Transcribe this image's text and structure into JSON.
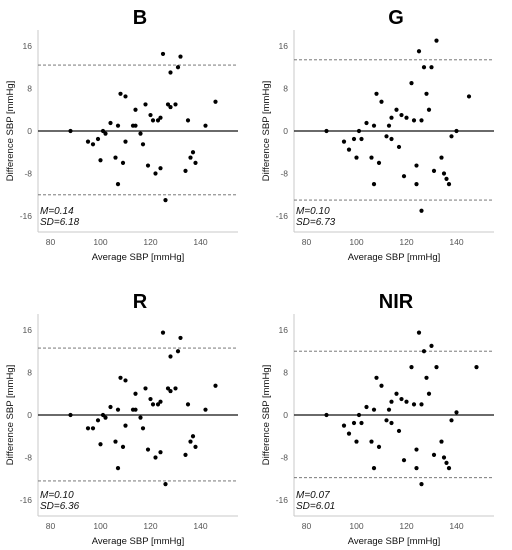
{
  "chart_data": [
    {
      "type": "scatter",
      "title": "B",
      "xlabel": "Average SBP [mmHg]",
      "ylabel": "Difference SBP [mmHg]",
      "xlim": [
        75,
        155
      ],
      "ylim": [
        -19,
        19
      ],
      "xticks": [
        "80",
        "100",
        "120",
        "140"
      ],
      "yticks": [
        "16",
        "8",
        "0",
        "-8",
        "-16"
      ],
      "mean_line": 0,
      "limits_of_agreement": [
        12.4,
        -12.0
      ],
      "stats": [
        "M=0.14",
        "SD=6.18"
      ],
      "x": [
        88,
        95,
        97,
        99,
        100,
        101,
        102,
        104,
        106,
        107,
        107,
        108,
        109,
        110,
        110,
        113,
        114,
        114,
        116,
        117,
        118,
        119,
        120,
        121,
        122,
        123,
        124,
        124,
        125,
        126,
        127,
        128,
        128,
        130,
        131,
        132,
        134,
        135,
        136,
        137,
        138,
        142,
        146
      ],
      "y": [
        0,
        -2,
        -2.5,
        -1.5,
        -5.5,
        0,
        -0.5,
        1.5,
        -5,
        -10,
        1,
        7,
        -6,
        -2,
        6.5,
        1,
        1,
        4,
        -0.5,
        -2.5,
        5,
        -6.5,
        3,
        2,
        -8,
        2,
        -7,
        2.5,
        14.5,
        -13,
        5,
        4.5,
        11,
        5,
        12,
        14,
        -7.5,
        2,
        -5,
        -4,
        -6,
        1,
        5.5
      ]
    },
    {
      "type": "scatter",
      "title": "G",
      "xlabel": "Average SBP [mmHg]",
      "ylabel": "Difference SBP [mmHg]",
      "xlim": [
        75,
        155
      ],
      "ylim": [
        -19,
        19
      ],
      "xticks": [
        "80",
        "100",
        "120",
        "140"
      ],
      "yticks": [
        "16",
        "8",
        "0",
        "-8",
        "-16"
      ],
      "mean_line": 0,
      "limits_of_agreement": [
        13.4,
        -13.0
      ],
      "stats": [
        "M=0.10",
        "SD=6.73"
      ],
      "x": [
        88,
        95,
        97,
        99,
        100,
        101,
        102,
        104,
        106,
        107,
        107,
        108,
        109,
        110,
        112,
        113,
        114,
        114,
        116,
        117,
        118,
        119,
        120,
        122,
        123,
        124,
        124,
        125,
        126,
        126,
        127,
        128,
        129,
        130,
        131,
        132,
        134,
        135,
        136,
        137,
        138,
        140,
        145
      ],
      "y": [
        0,
        -2,
        -3.5,
        -1.5,
        -5,
        0,
        -1.5,
        1.5,
        -5,
        -10,
        1,
        7,
        -6,
        5.5,
        -1,
        1,
        2.5,
        -1.5,
        4,
        -3,
        3,
        -8.5,
        2.5,
        9,
        2,
        -10,
        -6.5,
        15,
        -15,
        2,
        12,
        7,
        4,
        12,
        -7.5,
        17,
        -5,
        -8,
        -9,
        -10,
        -1,
        0,
        6.5
      ]
    },
    {
      "type": "scatter",
      "title": "R",
      "xlabel": "Average SBP [mmHg]",
      "ylabel": "Difference SBP [mmHg]",
      "xlim": [
        75,
        155
      ],
      "ylim": [
        -19,
        19
      ],
      "xticks": [
        "80",
        "100",
        "120",
        "140"
      ],
      "yticks": [
        "16",
        "8",
        "0",
        "-8",
        "-16"
      ],
      "mean_line": 0,
      "limits_of_agreement": [
        12.6,
        -12.4
      ],
      "stats": [
        "M=0.10",
        "SD=6.36"
      ],
      "x": [
        88,
        95,
        97,
        99,
        100,
        101,
        102,
        104,
        106,
        107,
        107,
        108,
        109,
        110,
        110,
        113,
        114,
        114,
        116,
        117,
        118,
        119,
        120,
        121,
        122,
        123,
        124,
        124,
        125,
        126,
        127,
        128,
        128,
        130,
        131,
        132,
        134,
        135,
        136,
        137,
        138,
        142,
        146
      ],
      "y": [
        0,
        -2.5,
        -2.5,
        -1,
        -5.5,
        0,
        -0.5,
        1.5,
        -5,
        -10,
        1,
        7,
        -6,
        -2,
        6.5,
        1,
        1,
        4,
        -0.5,
        -2.5,
        5,
        -6.5,
        3,
        2,
        -8,
        2,
        -7,
        2.5,
        15.5,
        -13,
        5,
        4.5,
        11,
        5,
        12,
        14.5,
        -7.5,
        2,
        -5,
        -4,
        -6,
        1,
        5.5
      ]
    },
    {
      "type": "scatter",
      "title": "NIR",
      "xlabel": "Average SBP [mmHg]",
      "ylabel": "Difference SBP [mmHg]",
      "xlim": [
        75,
        155
      ],
      "ylim": [
        -19,
        19
      ],
      "xticks": [
        "80",
        "100",
        "120",
        "140"
      ],
      "yticks": [
        "16",
        "8",
        "0",
        "-8",
        "-16"
      ],
      "mean_line": 0,
      "limits_of_agreement": [
        12.0,
        -11.8
      ],
      "stats": [
        "M=0.07",
        "SD=6.01"
      ],
      "x": [
        88,
        95,
        97,
        99,
        100,
        101,
        102,
        104,
        106,
        107,
        107,
        108,
        109,
        110,
        112,
        113,
        114,
        114,
        116,
        117,
        118,
        119,
        120,
        122,
        123,
        124,
        124,
        125,
        126,
        126,
        127,
        128,
        129,
        130,
        131,
        132,
        134,
        135,
        136,
        137,
        138,
        140,
        148
      ],
      "y": [
        0,
        -2,
        -3.5,
        -1.5,
        -5,
        0,
        -1.5,
        1.5,
        -5,
        -10,
        1,
        7,
        -6,
        5.5,
        -1,
        1,
        2.5,
        -1.5,
        4,
        -3,
        3,
        -8.5,
        2.5,
        9,
        2,
        -10,
        -6.5,
        15.5,
        -13,
        2,
        12,
        7,
        4,
        13,
        -7.5,
        9,
        -5,
        -8,
        -9,
        -10,
        -1,
        0.5,
        9
      ]
    }
  ]
}
